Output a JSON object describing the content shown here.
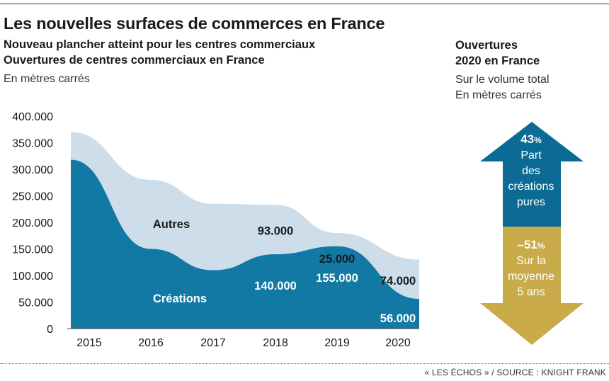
{
  "title": "Les nouvelles surfaces de commerces en France",
  "subtitle_1": "Nouveau plancher atteint pour les centres commerciaux",
  "subtitle_2": "Ouvertures de centres commerciaux en France",
  "unit": "En mètres carrés",
  "side_panel": {
    "title_1": "Ouvertures",
    "title_2": "2020 en France",
    "sub_1": "Sur le volume total",
    "sub_2": "En mètres carrés",
    "up": {
      "value": "43",
      "pct": "%",
      "lines": [
        "Part",
        "des",
        "créations",
        "pures"
      ],
      "color": "#0b6b94"
    },
    "down": {
      "value": "–51",
      "pct": "%",
      "lines": [
        "Sur la",
        "moyenne",
        "5 ans"
      ],
      "color": "#c9ab4a"
    }
  },
  "source": "« LES ÉCHOS » / SOURCE : KNIGHT FRANK",
  "chart_data": {
    "type": "area",
    "stacked": true,
    "x": [
      2015,
      2016,
      2017,
      2018,
      2019,
      2020
    ],
    "ylim": [
      0,
      400000
    ],
    "yticks": [
      "400.000",
      "350.000",
      "300.000",
      "250.000",
      "200.000",
      "150.000",
      "100.000",
      "50.000",
      "0"
    ],
    "xticks": [
      "2015",
      "2016",
      "2017",
      "2018",
      "2019",
      "2020"
    ],
    "series": [
      {
        "name": "Créations",
        "values": [
          318000,
          150000,
          110000,
          140000,
          155000,
          56000
        ],
        "color": "#1179a4"
      },
      {
        "name": "Autres",
        "values": [
          52000,
          130000,
          125000,
          93000,
          25000,
          74000
        ],
        "color": "#cddde9"
      }
    ],
    "labels": [
      {
        "text": "Autres",
        "series": "Autres"
      },
      {
        "text": "Créations",
        "series": "Créations"
      },
      {
        "text": "93.000",
        "year": 2018,
        "series": "Autres"
      },
      {
        "text": "25.000",
        "year": 2019,
        "series": "Autres"
      },
      {
        "text": "74.000",
        "year": 2020,
        "series": "Autres"
      },
      {
        "text": "140.000",
        "year": 2018,
        "series": "Créations"
      },
      {
        "text": "155.000",
        "year": 2019,
        "series": "Créations"
      },
      {
        "text": "56.000",
        "year": 2020,
        "series": "Créations"
      }
    ],
    "grid": false
  }
}
